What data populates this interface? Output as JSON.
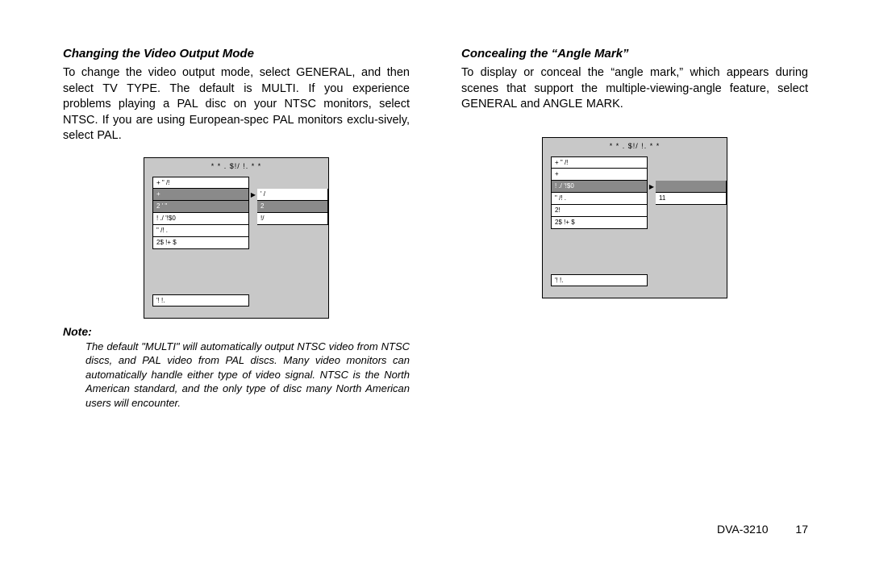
{
  "left": {
    "heading": "Changing the Video Output Mode",
    "body": "To change the video output mode, select GENERAL, and then select TV TYPE. The default is MULTI. If you experience problems playing a PAL disc on your NTSC monitors, select NTSC. If you are using European-spec PAL monitors exclu-sively, select PAL.",
    "note_label": "Note:",
    "note": "The default \"MULTI\" will automatically output NTSC video from NTSC discs, and PAL video from PAL discs. Many video monitors can automatically handle either type of video signal. NTSC is the North American standard, and the only type of disc many North American users will encounter.",
    "menu": {
      "title": "* *  .  $!/  !.   * *",
      "rows": [
        {
          "l": "+ \"  /!",
          "r": "",
          "sel": false,
          "rblank": true
        },
        {
          "l": "+",
          "r": "' /",
          "sel": false,
          "lgray": true,
          "showArrow": true
        },
        {
          "l": "2 ' \"",
          "r": "2",
          "sel": true
        },
        {
          "l": "! ./  '!$0",
          "r": "!/",
          "sel": false
        },
        {
          "l": "\" /! .",
          "r": "",
          "sel": false,
          "rblank": true
        },
        {
          "l": "2$  !+ $",
          "r": "",
          "sel": false,
          "rblank": true
        }
      ],
      "footer": "'!   !."
    }
  },
  "right": {
    "heading": "Concealing the “Angle Mark”",
    "body": "To display or conceal the “angle mark,” which appears during scenes that support the multiple-viewing-angle feature, select GENERAL and ANGLE MARK.",
    "menu": {
      "title": "* *  .  $!/  !.   * *",
      "rows": [
        {
          "l": "+ \"  /!",
          "r": "",
          "sel": false,
          "rblank": true
        },
        {
          "l": "+",
          "r": "",
          "sel": false,
          "rblank": true
        },
        {
          "l": "! ./  '!$0",
          "r": "",
          "sel": true,
          "rblank": false,
          "showArrow": true
        },
        {
          "l": "\" /! .",
          "r": "11",
          "sel": false
        },
        {
          "l": "2!",
          "r": "",
          "sel": false,
          "rblank": true
        },
        {
          "l": "2$  !+ $",
          "r": "",
          "sel": false,
          "rblank": true
        }
      ],
      "footer": "'!   !."
    }
  },
  "footer": {
    "model": "DVA-3210",
    "page": "17"
  }
}
